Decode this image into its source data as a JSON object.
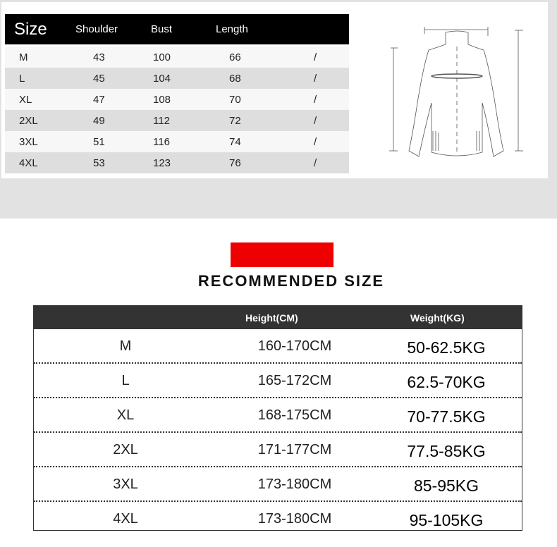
{
  "measurement_table": {
    "headers": [
      "Size",
      "Shoulder",
      "Bust",
      "Length"
    ],
    "rows": [
      {
        "size": "M",
        "shoulder": "43",
        "bust": "100",
        "length": "66",
        "extra": "/"
      },
      {
        "size": "L",
        "shoulder": "45",
        "bust": "104",
        "length": "68",
        "extra": "/"
      },
      {
        "size": "XL",
        "shoulder": "47",
        "bust": "108",
        "length": "70",
        "extra": "/"
      },
      {
        "size": "2XL",
        "shoulder": "49",
        "bust": "112",
        "length": "72",
        "extra": "/"
      },
      {
        "size": "3XL",
        "shoulder": "51",
        "bust": "116",
        "length": "74",
        "extra": "/"
      },
      {
        "size": "4XL",
        "shoulder": "53",
        "bust": "123",
        "length": "76",
        "extra": "/"
      }
    ]
  },
  "accent_color": "#ee0000",
  "recommended": {
    "title": "RECOMMENDED SIZE",
    "headers": [
      "",
      "Height(CM)",
      "Weight(KG)"
    ],
    "rows": [
      {
        "size": "M",
        "height": "160-170CM",
        "weight": "50-62.5KG"
      },
      {
        "size": "L",
        "height": "165-172CM",
        "weight": "62.5-70KG"
      },
      {
        "size": "XL",
        "height": "168-175CM",
        "weight": "70-77.5KG"
      },
      {
        "size": "2XL",
        "height": "171-177CM",
        "weight": "77.5-85KG"
      },
      {
        "size": "3XL",
        "height": "173-180CM",
        "weight": "85-95KG"
      },
      {
        "size": "4XL",
        "height": "173-180CM",
        "weight": "95-105KG"
      }
    ]
  }
}
